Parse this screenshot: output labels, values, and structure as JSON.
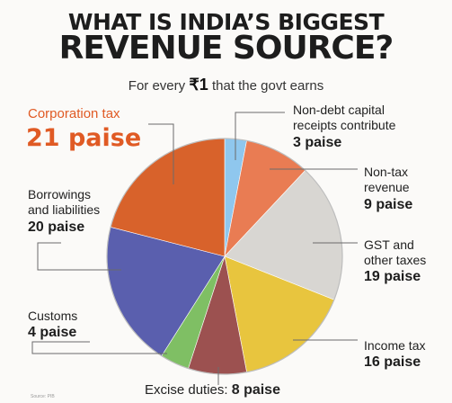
{
  "header": {
    "title_line1": "WHAT IS INDIA’S BIGGEST",
    "title_line2": "REVENUE SOURCE?",
    "subtitle_pre": "For every",
    "subtitle_currency": "₹",
    "subtitle_amount": "1",
    "subtitle_post": "that the govt earns"
  },
  "labels": {
    "corporation": {
      "name": "Corporation tax",
      "value": "21 paise"
    },
    "borrowings": {
      "name1": "Borrowings",
      "name2": "and liabilities",
      "value": "20 paise"
    },
    "customs": {
      "name": "Customs",
      "value": "4 paise"
    },
    "excise": {
      "name": "Excise duties:",
      "value": "8 paise"
    },
    "nondebt": {
      "name1": "Non-debt capital",
      "name2": "receipts contribute",
      "value": "3 paise"
    },
    "nontax": {
      "name1": "Non-tax",
      "name2": "revenue",
      "value": "9 paise"
    },
    "gst": {
      "name1": "GST and",
      "name2": "other taxes",
      "value": "19 paise"
    },
    "income": {
      "name": "Income tax",
      "value": "16 paise"
    }
  },
  "source": "Source: PIB",
  "chart_data": {
    "type": "pie",
    "unit": "paise",
    "slices": [
      {
        "name": "Non-debt capital receipts",
        "value": 3,
        "color": "#8fc7ee"
      },
      {
        "name": "Non-tax revenue",
        "value": 9,
        "color": "#e97c53"
      },
      {
        "name": "GST and other taxes",
        "value": 19,
        "color": "#d8d6d2"
      },
      {
        "name": "Income tax",
        "value": 16,
        "color": "#e8c53e"
      },
      {
        "name": "Excise duties",
        "value": 8,
        "color": "#9c5150"
      },
      {
        "name": "Customs",
        "value": 4,
        "color": "#7fbf64"
      },
      {
        "name": "Borrowings and liabilities",
        "value": 20,
        "color": "#5a5fae"
      },
      {
        "name": "Corporation tax",
        "value": 21,
        "color": "#d8622b"
      }
    ]
  }
}
